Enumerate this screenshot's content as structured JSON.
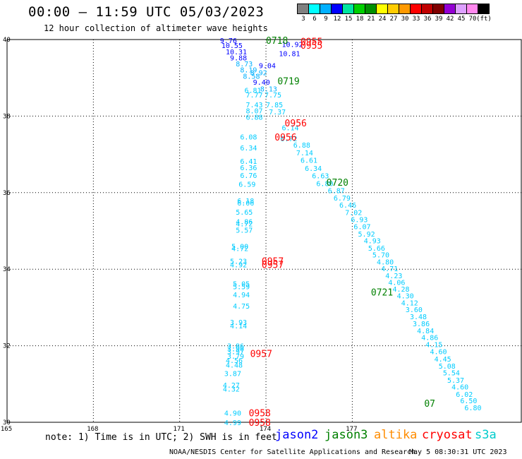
{
  "header": {
    "title": "00:00 – 11:59 UTC 05/03/2023",
    "subtitle": "12 hour collection of altimeter wave heights"
  },
  "scale": {
    "colors": [
      "#808080",
      "#00ffff",
      "#00b0ff",
      "#0000ff",
      "#00e5a0",
      "#00d000",
      "#009000",
      "#ffff00",
      "#ffcc00",
      "#ff9900",
      "#ff0000",
      "#c00000",
      "#800000",
      "#9400d3",
      "#dda0ff",
      "#ff88ee",
      "#000000"
    ],
    "labels": [
      "3",
      "6",
      "9",
      "12",
      "15",
      "18",
      "21",
      "24",
      "27",
      "30",
      "33",
      "36",
      "39",
      "42",
      "45",
      "70",
      "(ft)"
    ]
  },
  "axes": {
    "lat_labels": [
      "40",
      "38",
      "36",
      "34",
      "32",
      "30"
    ],
    "lon_labels": [
      "165",
      "168",
      "171",
      "174",
      "177"
    ]
  },
  "passes": {
    "colors": {
      "jason2": "#0000ff",
      "jason3": "#008000",
      "altika": "#ff8c00",
      "cryosat": "#ff0000",
      "s3a": "#00cccc"
    },
    "times": [
      {
        "text": "0718",
        "sat": "jason3",
        "lon": 174.0,
        "lat": 39.98
      },
      {
        "text": "0955",
        "sat": "cryosat",
        "lon": 175.2,
        "lat": 39.95
      },
      {
        "text": "0955",
        "sat": "cryosat",
        "lon": 175.2,
        "lat": 39.85
      },
      {
        "text": "0719",
        "sat": "jason3",
        "lon": 174.4,
        "lat": 38.92
      },
      {
        "text": "0956",
        "sat": "cryosat",
        "lon": 174.65,
        "lat": 37.82
      },
      {
        "text": "0956",
        "sat": "cryosat",
        "lon": 174.3,
        "lat": 37.45
      },
      {
        "text": "0720",
        "sat": "jason3",
        "lon": 176.1,
        "lat": 36.27
      },
      {
        "text": "0957",
        "sat": "cryosat",
        "lon": 173.85,
        "lat": 34.22
      },
      {
        "text": "0957",
        "sat": "cryosat",
        "lon": 173.85,
        "lat": 34.12
      },
      {
        "text": "0721",
        "sat": "jason3",
        "lon": 177.65,
        "lat": 33.4
      },
      {
        "text": "0957",
        "sat": "cryosat",
        "lon": 173.45,
        "lat": 31.8
      },
      {
        "text": "0958",
        "sat": "cryosat",
        "lon": 173.4,
        "lat": 30.25
      },
      {
        "text": "0958",
        "sat": "cryosat",
        "lon": 173.4,
        "lat": 30.0
      },
      {
        "text": "07",
        "sat": "jason3",
        "lon": 179.5,
        "lat": 30.5
      }
    ],
    "swh": [
      {
        "v": "9.76",
        "c": "#0000ff",
        "lon": 172.4,
        "lat": 39.98
      },
      {
        "v": "10.55",
        "c": "#0000ff",
        "lon": 172.45,
        "lat": 39.85
      },
      {
        "v": "10.92",
        "c": "#0000ff",
        "lon": 174.55,
        "lat": 39.88
      },
      {
        "v": "10.31",
        "c": "#0000ff",
        "lon": 172.6,
        "lat": 39.69
      },
      {
        "v": "10.81",
        "c": "#0000ff",
        "lon": 174.45,
        "lat": 39.64
      },
      {
        "v": "9.88",
        "c": "#0000ff",
        "lon": 172.75,
        "lat": 39.53
      },
      {
        "v": "8.73",
        "c": "#00b0ff",
        "lon": 172.95,
        "lat": 39.37
      },
      {
        "v": "9.04",
        "c": "#0000ff",
        "lon": 173.75,
        "lat": 39.33
      },
      {
        "v": "8.19",
        "c": "#00b0ff",
        "lon": 173.1,
        "lat": 39.22
      },
      {
        "v": "8.92",
        "c": "#00b0ff",
        "lon": 173.45,
        "lat": 39.14
      },
      {
        "v": "8.58",
        "c": "#00b0ff",
        "lon": 173.2,
        "lat": 39.05
      },
      {
        "v": "9.40",
        "c": "#0000ff",
        "lon": 173.55,
        "lat": 38.89
      },
      {
        "v": "8.13",
        "c": "#00b0ff",
        "lon": 173.8,
        "lat": 38.72
      },
      {
        "v": "6.81",
        "c": "#00ccff",
        "lon": 173.25,
        "lat": 38.68
      },
      {
        "v": "7.77",
        "c": "#00ccff",
        "lon": 173.3,
        "lat": 38.56
      },
      {
        "v": "7.75",
        "c": "#00ccff",
        "lon": 173.95,
        "lat": 38.56
      },
      {
        "v": "7.43",
        "c": "#00ccff",
        "lon": 173.3,
        "lat": 38.3
      },
      {
        "v": "7.85",
        "c": "#00ccff",
        "lon": 174.0,
        "lat": 38.3
      },
      {
        "v": "8.07",
        "c": "#00ccff",
        "lon": 173.3,
        "lat": 38.15
      },
      {
        "v": "7.37",
        "c": "#00ccff",
        "lon": 174.1,
        "lat": 38.12
      },
      {
        "v": "6.88",
        "c": "#00ccff",
        "lon": 173.3,
        "lat": 37.98
      },
      {
        "v": "6.14",
        "c": "#00ccff",
        "lon": 174.55,
        "lat": 37.7
      },
      {
        "v": "6.08",
        "c": "#00ccff",
        "lon": 173.1,
        "lat": 37.46
      },
      {
        "v": "6.72",
        "c": "#00ccff",
        "lon": 174.5,
        "lat": 37.42
      },
      {
        "v": "6.88",
        "c": "#00ccff",
        "lon": 174.95,
        "lat": 37.25
      },
      {
        "v": "6.34",
        "c": "#00ccff",
        "lon": 173.1,
        "lat": 37.18
      },
      {
        "v": "7.14",
        "c": "#00ccff",
        "lon": 175.05,
        "lat": 37.05
      },
      {
        "v": "6.41",
        "c": "#00ccff",
        "lon": 173.1,
        "lat": 36.83
      },
      {
        "v": "6.61",
        "c": "#00ccff",
        "lon": 175.2,
        "lat": 36.85
      },
      {
        "v": "6.36",
        "c": "#00ccff",
        "lon": 173.1,
        "lat": 36.66
      },
      {
        "v": "6.34",
        "c": "#00ccff",
        "lon": 175.35,
        "lat": 36.64
      },
      {
        "v": "6.76",
        "c": "#00ccff",
        "lon": 173.1,
        "lat": 36.46
      },
      {
        "v": "6.63",
        "c": "#00ccff",
        "lon": 175.6,
        "lat": 36.45
      },
      {
        "v": "6.59",
        "c": "#00ccff",
        "lon": 173.05,
        "lat": 36.23
      },
      {
        "v": "6.80",
        "c": "#00ccff",
        "lon": 175.75,
        "lat": 36.25
      },
      {
        "v": "6.87",
        "c": "#00ccff",
        "lon": 176.15,
        "lat": 36.06
      },
      {
        "v": "6.79",
        "c": "#00ccff",
        "lon": 176.35,
        "lat": 35.87
      },
      {
        "v": "6.18",
        "c": "#00ccff",
        "lon": 173.0,
        "lat": 35.79
      },
      {
        "v": "6.06",
        "c": "#00ccff",
        "lon": 173.0,
        "lat": 35.74
      },
      {
        "v": "6.46",
        "c": "#00ccff",
        "lon": 176.55,
        "lat": 35.68
      },
      {
        "v": "5.65",
        "c": "#00ccff",
        "lon": 172.95,
        "lat": 35.5
      },
      {
        "v": "7.02",
        "c": "#00ccff",
        "lon": 176.75,
        "lat": 35.49
      },
      {
        "v": "4.86",
        "c": "#00ccff",
        "lon": 172.95,
        "lat": 35.25
      },
      {
        "v": "6.93",
        "c": "#00ccff",
        "lon": 176.95,
        "lat": 35.3
      },
      {
        "v": "4.72",
        "c": "#00ccff",
        "lon": 172.95,
        "lat": 35.19
      },
      {
        "v": "6.07",
        "c": "#00ccff",
        "lon": 177.05,
        "lat": 35.12
      },
      {
        "v": "5.57",
        "c": "#00ccff",
        "lon": 172.95,
        "lat": 35.03
      },
      {
        "v": "5.92",
        "c": "#00ccff",
        "lon": 177.2,
        "lat": 34.93
      },
      {
        "v": "4.93",
        "c": "#00ccff",
        "lon": 177.4,
        "lat": 34.75
      },
      {
        "v": "5.00",
        "c": "#00ccff",
        "lon": 172.8,
        "lat": 34.6
      },
      {
        "v": "4.72",
        "c": "#00ccff",
        "lon": 172.8,
        "lat": 34.55
      },
      {
        "v": "5.66",
        "c": "#00ccff",
        "lon": 177.55,
        "lat": 34.56
      },
      {
        "v": "5.70",
        "c": "#00ccff",
        "lon": 177.7,
        "lat": 34.38
      },
      {
        "v": "5.23",
        "c": "#00ccff",
        "lon": 172.75,
        "lat": 34.22
      },
      {
        "v": "4.92",
        "c": "#00ccff",
        "lon": 172.75,
        "lat": 34.12
      },
      {
        "v": "4.80",
        "c": "#00ccff",
        "lon": 177.85,
        "lat": 34.2
      },
      {
        "v": "4.71",
        "c": "#00ccff",
        "lon": 178.0,
        "lat": 34.02
      },
      {
        "v": "4.23",
        "c": "#00ccff",
        "lon": 178.15,
        "lat": 33.84
      },
      {
        "v": "4.06",
        "c": "#00ccff",
        "lon": 178.25,
        "lat": 33.66
      },
      {
        "v": "5.05",
        "c": "#00ccff",
        "lon": 172.85,
        "lat": 33.63
      },
      {
        "v": "5.59",
        "c": "#00ccff",
        "lon": 172.85,
        "lat": 33.55
      },
      {
        "v": "4.28",
        "c": "#00ccff",
        "lon": 178.4,
        "lat": 33.49
      },
      {
        "v": "4.94",
        "c": "#00ccff",
        "lon": 172.85,
        "lat": 33.34
      },
      {
        "v": "4.30",
        "c": "#00ccff",
        "lon": 178.55,
        "lat": 33.31
      },
      {
        "v": "4.12",
        "c": "#00ccff",
        "lon": 178.7,
        "lat": 33.13
      },
      {
        "v": "4.75",
        "c": "#00ccff",
        "lon": 172.85,
        "lat": 33.04
      },
      {
        "v": "3.60",
        "c": "#00ccff",
        "lon": 178.85,
        "lat": 32.95
      },
      {
        "v": "3.48",
        "c": "#00ccff",
        "lon": 179.0,
        "lat": 32.77
      },
      {
        "v": "3.93",
        "c": "#00ccff",
        "lon": 172.75,
        "lat": 32.62
      },
      {
        "v": "4.14",
        "c": "#00ccff",
        "lon": 172.75,
        "lat": 32.53
      },
      {
        "v": "3.86",
        "c": "#00ccff",
        "lon": 179.1,
        "lat": 32.58
      },
      {
        "v": "4.84",
        "c": "#00ccff",
        "lon": 179.25,
        "lat": 32.4
      },
      {
        "v": "4.86",
        "c": "#00ccff",
        "lon": 179.4,
        "lat": 32.22
      },
      {
        "v": "3.86",
        "c": "#00ccff",
        "lon": 172.65,
        "lat": 32.0
      },
      {
        "v": "3.90",
        "c": "#00ccff",
        "lon": 172.65,
        "lat": 31.93
      },
      {
        "v": "4.15",
        "c": "#00ccff",
        "lon": 179.55,
        "lat": 32.04
      },
      {
        "v": "3.97",
        "c": "#00ccff",
        "lon": 172.65,
        "lat": 31.85
      },
      {
        "v": "4.60",
        "c": "#00ccff",
        "lon": 179.7,
        "lat": 31.85
      },
      {
        "v": "3.79",
        "c": "#00ccff",
        "lon": 172.65,
        "lat": 31.73
      },
      {
        "v": "4.56",
        "c": "#00ccff",
        "lon": 172.6,
        "lat": 31.62
      },
      {
        "v": "4.45",
        "c": "#00ccff",
        "lon": 179.85,
        "lat": 31.66
      },
      {
        "v": "4.48",
        "c": "#00ccff",
        "lon": 172.6,
        "lat": 31.5
      },
      {
        "v": "5.08",
        "c": "#00ccff",
        "lon": 180.0,
        "lat": 31.48
      },
      {
        "v": "3.87",
        "c": "#00ccff",
        "lon": 172.55,
        "lat": 31.28
      },
      {
        "v": "5.54",
        "c": "#00ccff",
        "lon": 180.15,
        "lat": 31.3
      },
      {
        "v": "5.37",
        "c": "#00ccff",
        "lon": 180.3,
        "lat": 31.11
      },
      {
        "v": "4.27",
        "c": "#00ccff",
        "lon": 172.5,
        "lat": 30.98
      },
      {
        "v": "4.60",
        "c": "#00ccff",
        "lon": 180.45,
        "lat": 30.93
      },
      {
        "v": "4.32",
        "c": "#00ccff",
        "lon": 172.5,
        "lat": 30.88
      },
      {
        "v": "6.02",
        "c": "#00ccff",
        "lon": 180.6,
        "lat": 30.74
      },
      {
        "v": "4.90",
        "c": "#00ccff",
        "lon": 172.55,
        "lat": 30.25
      },
      {
        "v": "6.50",
        "c": "#00ccff",
        "lon": 180.75,
        "lat": 30.57
      },
      {
        "v": "4.99",
        "c": "#00ccff",
        "lon": 172.55,
        "lat": 30.0
      },
      {
        "v": "6.80",
        "c": "#00ccff",
        "lon": 180.9,
        "lat": 30.39
      }
    ]
  },
  "footer": {
    "note": "note: 1) Time is in UTC; 2) SWH is in feet",
    "legend": [
      {
        "name": "jason2",
        "sat": "jason2"
      },
      {
        "name": "jason3",
        "sat": "jason3"
      },
      {
        "name": "altika",
        "sat": "altika"
      },
      {
        "name": "cryosat",
        "sat": "cryosat"
      },
      {
        "name": "s3a",
        "sat": "s3a"
      }
    ],
    "credit": "NOAA/NESDIS Center for Satellite Applications and Research",
    "timestamp": "May  5 08:30:31 UTC 2023"
  }
}
